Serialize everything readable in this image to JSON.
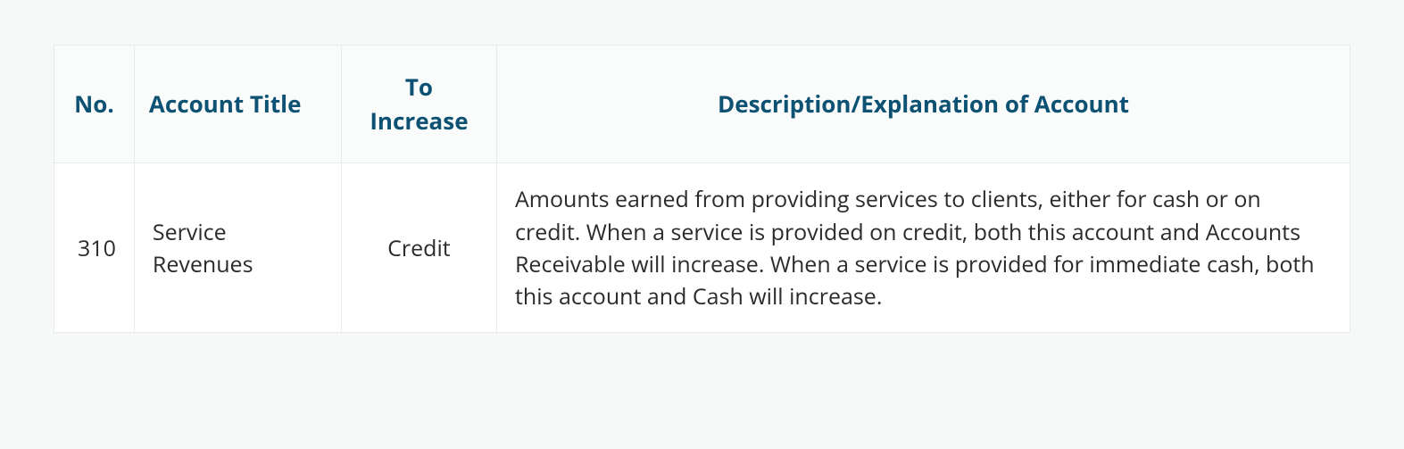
{
  "table": {
    "columns": [
      "No.",
      "Account Title",
      "To Increase",
      "Description/Explanation of Account"
    ],
    "rows": [
      {
        "no": "310",
        "title": "Service Revenues",
        "to_increase": "Credit",
        "description": "Amounts earned from providing services to clients, either for cash or on credit. When a service is provided on credit, both this account and Accounts Receivable will increase. When a service is provided for immediate cash, both this account and Cash will increase."
      }
    ],
    "header_color": "#0d5173",
    "header_bg": "#fafbfb",
    "body_color": "#2b2b2b",
    "border_color": "#e8ebec",
    "page_bg": "#f7f8f8",
    "header_fontsize": 26,
    "body_fontsize": 25,
    "col_widths_pct": [
      6,
      16,
      12,
      66
    ],
    "col_align": [
      "left",
      "left",
      "center",
      "left"
    ]
  }
}
